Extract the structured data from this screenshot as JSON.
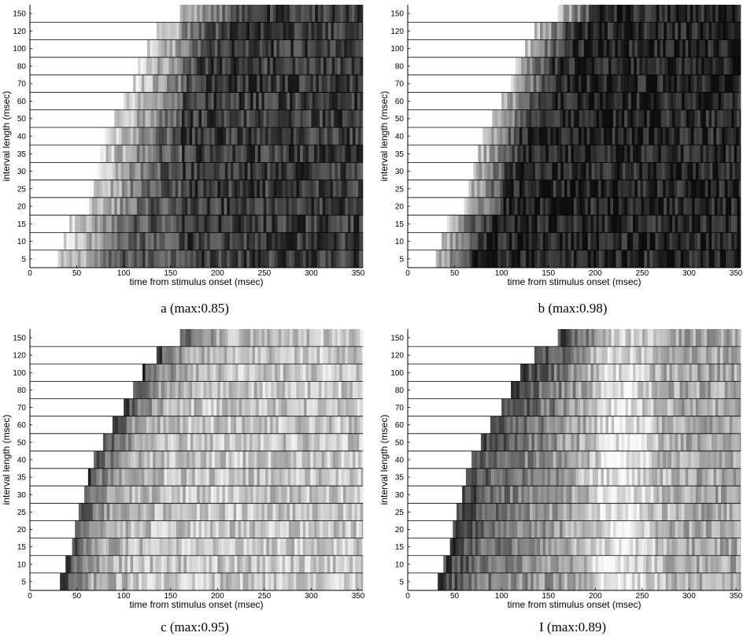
{
  "chart_data": [
    {
      "type": "heatmap",
      "panel": "a",
      "caption": "a (max:0.85)",
      "max": 0.85,
      "xlabel": "time from stimulus onset (msec)",
      "ylabel": "interval length (msec)",
      "xlim": [
        0,
        355
      ],
      "xticks": [
        0,
        50,
        100,
        150,
        200,
        250,
        300,
        350
      ],
      "rows": [
        "5",
        "10",
        "15",
        "20",
        "25",
        "30",
        "35",
        "40",
        "50",
        "60",
        "70",
        "80",
        "100",
        "120",
        "150"
      ],
      "row_onsets_msec": [
        30,
        36,
        42,
        60,
        65,
        70,
        75,
        80,
        90,
        100,
        110,
        115,
        125,
        135,
        160
      ],
      "response_peak_msec": 170,
      "colormap": "gray, dark = high"
    },
    {
      "type": "heatmap",
      "panel": "b",
      "caption": "b (max:0.98)",
      "max": 0.98,
      "xlabel": "time from stimulus onset (msec)",
      "ylabel": "interval length (msec)",
      "xlim": [
        0,
        355
      ],
      "xticks": [
        0,
        50,
        100,
        150,
        200,
        250,
        300,
        350
      ],
      "rows": [
        "5",
        "10",
        "15",
        "20",
        "25",
        "30",
        "35",
        "40",
        "50",
        "60",
        "70",
        "80",
        "100",
        "120",
        "150"
      ],
      "row_onsets_msec": [
        30,
        36,
        42,
        60,
        65,
        70,
        75,
        80,
        90,
        100,
        110,
        115,
        125,
        135,
        160
      ],
      "response_peak_msec": 130,
      "colormap": "gray, dark = high"
    },
    {
      "type": "heatmap",
      "panel": "c",
      "caption": "c (max:0.95)",
      "max": 0.95,
      "xlabel": "time from stimulus onset (msec)",
      "ylabel": "interval length (msec)",
      "xlim": [
        0,
        355
      ],
      "xticks": [
        0,
        50,
        100,
        150,
        200,
        250,
        300,
        350
      ],
      "rows": [
        "5",
        "10",
        "15",
        "20",
        "25",
        "30",
        "35",
        "40",
        "50",
        "60",
        "70",
        "80",
        "100",
        "120",
        "150"
      ],
      "row_onsets_msec": [
        32,
        38,
        45,
        48,
        52,
        58,
        62,
        68,
        78,
        88,
        100,
        110,
        120,
        135,
        160
      ],
      "response_peak_msec": 40,
      "colormap": "gray, dark = high"
    },
    {
      "type": "heatmap",
      "panel": "I",
      "caption": "I (max:0.89)",
      "max": 0.89,
      "xlabel": "time from stimulus onset (msec)",
      "ylabel": "interval length (msec)",
      "xlim": [
        0,
        355
      ],
      "xticks": [
        0,
        50,
        100,
        150,
        200,
        250,
        300,
        350
      ],
      "rows": [
        "5",
        "10",
        "15",
        "20",
        "25",
        "30",
        "35",
        "40",
        "50",
        "60",
        "70",
        "80",
        "100",
        "120",
        "150"
      ],
      "row_onsets_msec": [
        32,
        38,
        45,
        48,
        52,
        58,
        62,
        68,
        78,
        88,
        100,
        110,
        120,
        135,
        160
      ],
      "response_peak_msec": 60,
      "colormap": "gray, dark = high"
    }
  ]
}
